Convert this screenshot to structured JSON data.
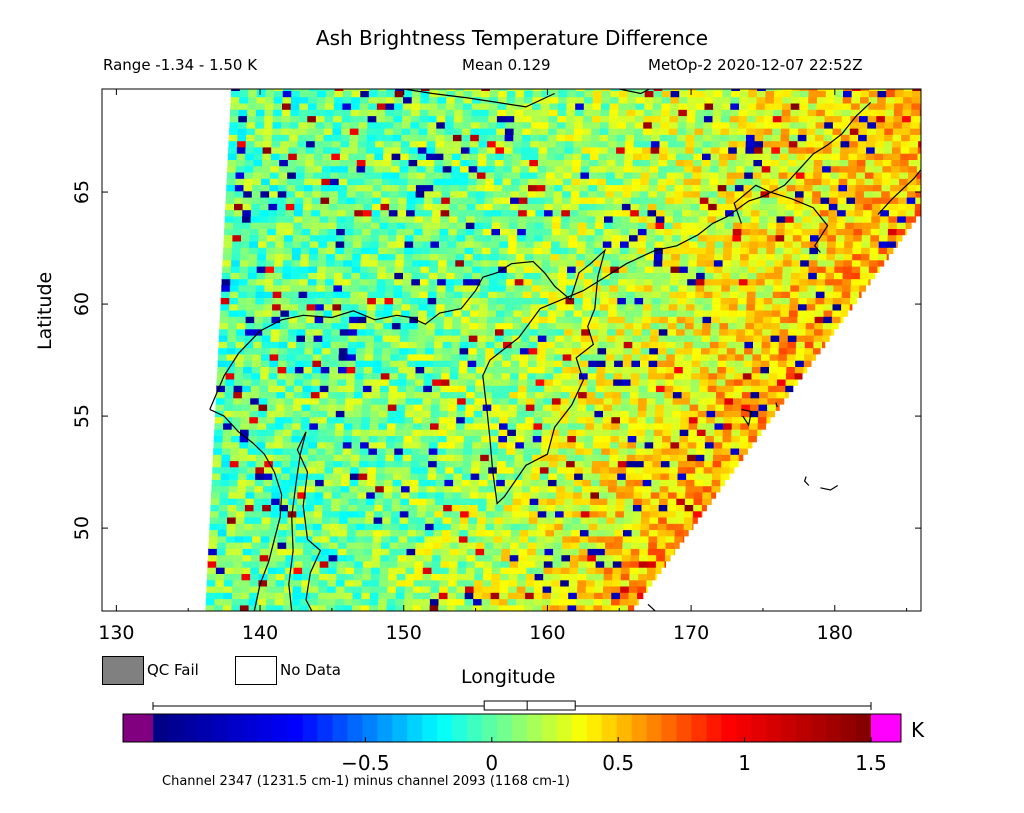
{
  "header": {
    "title": "Ash Brightness Temperature Difference",
    "range": "Range -1.34 - 1.50 K",
    "mean": "Mean 0.129",
    "satellite_time": "MetOp-2 2020-12-07 22:52Z"
  },
  "legend": {
    "qc_fail_label": "QC Fail",
    "no_data_label": "No Data",
    "qc_fail_color": "#808080",
    "no_data_color": "#ffffff"
  },
  "colorbar": {
    "unit": "K",
    "min": -1.34,
    "max": 1.5,
    "ticks": [
      -0.5,
      0,
      0.5,
      1,
      1.5
    ],
    "tick_labels": [
      "−0.5",
      "0",
      "0.5",
      "1",
      "1.5"
    ],
    "under_color": "#800080",
    "over_color": "#ff00ff",
    "box": {
      "q1": -0.03,
      "median": 0.14,
      "q3": 0.33,
      "whisker_low": -1.34,
      "whisker_high": 1.5
    }
  },
  "footnote": "Channel 2347 (1231.5 cm-1) minus channel 2093 (1168 cm-1)",
  "chart_data": {
    "type": "heatmap",
    "title": "Ash Brightness Temperature Difference",
    "xlabel": "Longitude",
    "ylabel": "Latitude",
    "xlim": [
      129,
      186
    ],
    "ylim": [
      46.3,
      69.6
    ],
    "x_ticks": [
      130,
      140,
      150,
      160,
      170,
      180
    ],
    "x_tick_labels": [
      "130",
      "140",
      "150",
      "160",
      "170",
      "180"
    ],
    "y_ticks": [
      50,
      55,
      60,
      65
    ],
    "y_tick_labels": [
      "50",
      "55",
      "60",
      "65"
    ],
    "value_range": [
      -1.34,
      1.5
    ],
    "mean": 0.129,
    "units": "K",
    "swath_boundary_west": [
      [
        136.2,
        46.3
      ],
      [
        138.0,
        69.6
      ]
    ],
    "swath_boundary_east": [
      [
        166.0,
        46.3
      ],
      [
        186.0,
        64.0
      ]
    ],
    "colormap": [
      "#000080",
      "#0000ff",
      "#00ffff",
      "#ffff00",
      "#ff0000",
      "#800000"
    ]
  },
  "coastlines": [
    [
      [
        136.5,
        55.3
      ],
      [
        137.5,
        55.0
      ],
      [
        138.5,
        54.3
      ],
      [
        139.5,
        53.8
      ],
      [
        140.3,
        53.3
      ],
      [
        141.0,
        52.5
      ],
      [
        141.5,
        51.5
      ],
      [
        141.4,
        50.5
      ],
      [
        141.0,
        49.5
      ],
      [
        140.6,
        48.5
      ],
      [
        140.0,
        47.5
      ],
      [
        139.6,
        46.3
      ]
    ],
    [
      [
        142.2,
        46.3
      ],
      [
        142.0,
        47.5
      ],
      [
        142.3,
        49.0
      ],
      [
        142.2,
        50.5
      ],
      [
        142.5,
        52.0
      ],
      [
        142.8,
        53.3
      ],
      [
        143.2,
        54.3
      ],
      [
        142.6,
        53.5
      ],
      [
        143.3,
        52.5
      ],
      [
        143.0,
        51.0
      ],
      [
        143.3,
        49.5
      ],
      [
        144.2,
        49.0
      ],
      [
        143.5,
        48.0
      ],
      [
        143.2,
        46.8
      ],
      [
        143.6,
        46.3
      ]
    ],
    [
      [
        136.5,
        55.3
      ],
      [
        137.5,
        56.8
      ],
      [
        138.5,
        57.8
      ],
      [
        140.0,
        58.8
      ],
      [
        141.5,
        59.3
      ],
      [
        143.0,
        59.5
      ],
      [
        145.0,
        59.4
      ],
      [
        146.5,
        59.7
      ],
      [
        148.0,
        59.3
      ],
      [
        149.5,
        59.5
      ],
      [
        150.5,
        59.4
      ],
      [
        151.5,
        59.1
      ],
      [
        152.5,
        59.6
      ],
      [
        154.0,
        59.8
      ],
      [
        155.0,
        60.6
      ],
      [
        155.5,
        61.2
      ],
      [
        156.5,
        61.4
      ],
      [
        157.5,
        61.8
      ],
      [
        159.0,
        61.9
      ],
      [
        159.8,
        61.4
      ],
      [
        160.5,
        60.8
      ],
      [
        161.6,
        60.2
      ],
      [
        162.2,
        61.4
      ],
      [
        163.0,
        61.8
      ],
      [
        164.0,
        62.4
      ],
      [
        163.5,
        61.2
      ],
      [
        163.3,
        59.8
      ],
      [
        162.8,
        59.0
      ],
      [
        163.2,
        58.2
      ],
      [
        162.0,
        57.6
      ],
      [
        162.5,
        56.6
      ],
      [
        161.7,
        55.5
      ],
      [
        160.5,
        54.5
      ],
      [
        160.0,
        53.3
      ],
      [
        158.5,
        52.8
      ],
      [
        157.0,
        51.4
      ],
      [
        156.5,
        51.1
      ],
      [
        156.2,
        52.5
      ],
      [
        156.0,
        54.0
      ],
      [
        155.8,
        55.2
      ],
      [
        155.5,
        56.8
      ],
      [
        156.0,
        57.5
      ],
      [
        157.0,
        58.0
      ],
      [
        158.0,
        58.5
      ],
      [
        159.5,
        59.8
      ],
      [
        161.0,
        60.2
      ],
      [
        162.5,
        60.6
      ],
      [
        164.0,
        61.2
      ],
      [
        165.5,
        61.8
      ],
      [
        167.5,
        62.4
      ],
      [
        169.0,
        62.6
      ],
      [
        170.5,
        63.1
      ],
      [
        171.5,
        63.6
      ],
      [
        172.5,
        63.9
      ],
      [
        174.0,
        64.6
      ],
      [
        175.0,
        64.8
      ],
      [
        176.5,
        65.3
      ],
      [
        177.5,
        66.0
      ],
      [
        178.5,
        66.7
      ],
      [
        179.5,
        67.1
      ],
      [
        180.5,
        67.6
      ],
      [
        181.5,
        68.4
      ],
      [
        182.5,
        69.0
      ]
    ],
    [
      [
        173.5,
        55.3
      ],
      [
        174.2,
        55.2
      ],
      [
        174.0,
        54.6
      ],
      [
        173.6,
        55.0
      ]
    ],
    [
      [
        176.0,
        55.4
      ],
      [
        175.9,
        55.6
      ]
    ],
    [
      [
        167.5,
        46.3
      ],
      [
        167.0,
        46.6
      ]
    ],
    [
      [
        173.5,
        63.6
      ],
      [
        173.0,
        64.5
      ],
      [
        174.5,
        65.3
      ],
      [
        175.5,
        65.0
      ],
      [
        177.0,
        64.7
      ],
      [
        178.5,
        64.3
      ],
      [
        179.5,
        63.5
      ],
      [
        178.6,
        62.6
      ],
      [
        179.0,
        62.3
      ]
    ],
    [
      [
        165.0,
        69.6
      ],
      [
        166.5,
        69.4
      ],
      [
        168.0,
        69.9
      ]
    ],
    [
      [
        150.0,
        69.6
      ],
      [
        152.0,
        69.4
      ],
      [
        154.5,
        69.2
      ],
      [
        156.5,
        69.0
      ],
      [
        158.5,
        68.8
      ],
      [
        160.5,
        69.4
      ]
    ],
    [
      [
        183.0,
        64.0
      ],
      [
        184.0,
        64.7
      ],
      [
        185.5,
        65.6
      ],
      [
        186.0,
        66.0
      ]
    ],
    [
      [
        178.0,
        52.3
      ],
      [
        177.9,
        52.1
      ],
      [
        178.2,
        51.9
      ]
    ],
    [
      [
        179.0,
        51.8
      ],
      [
        179.7,
        51.7
      ],
      [
        180.2,
        51.9
      ]
    ]
  ]
}
